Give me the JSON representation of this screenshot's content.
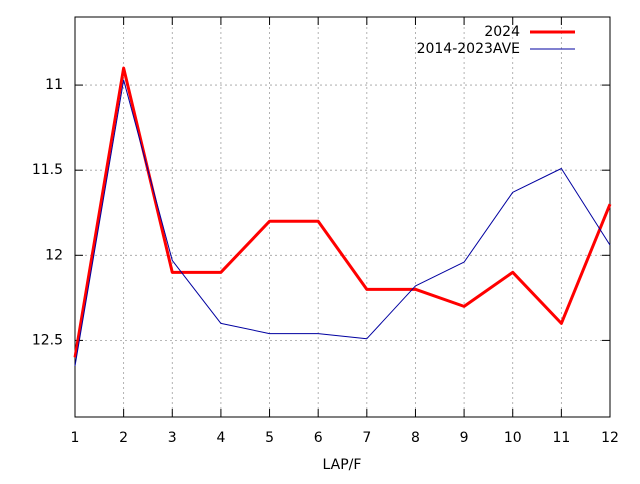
{
  "chart_data": {
    "type": "line",
    "xlabel": "LAP/F",
    "x": [
      1,
      2,
      3,
      4,
      5,
      6,
      7,
      8,
      9,
      10,
      11,
      12
    ],
    "series": [
      {
        "name": "2024",
        "color": "#ff0000",
        "width": 3,
        "values": [
          12.6,
          10.9,
          12.1,
          12.1,
          11.8,
          11.8,
          12.2,
          12.2,
          12.3,
          12.1,
          12.4,
          11.7
        ]
      },
      {
        "name": "2014-2023AVE",
        "color": "#0000a0",
        "width": 1,
        "values": [
          12.65,
          10.97,
          12.03,
          12.4,
          12.46,
          12.46,
          12.49,
          12.18,
          12.04,
          11.63,
          11.49,
          11.94
        ]
      }
    ],
    "xlim": [
      1,
      12
    ],
    "xticks": [
      1,
      2,
      3,
      4,
      5,
      6,
      7,
      8,
      9,
      10,
      11,
      12
    ],
    "ylim": [
      12.95,
      10.6
    ],
    "yticks": [
      11,
      11.5,
      12,
      12.5
    ],
    "grid": true,
    "legend": "top-right"
  }
}
